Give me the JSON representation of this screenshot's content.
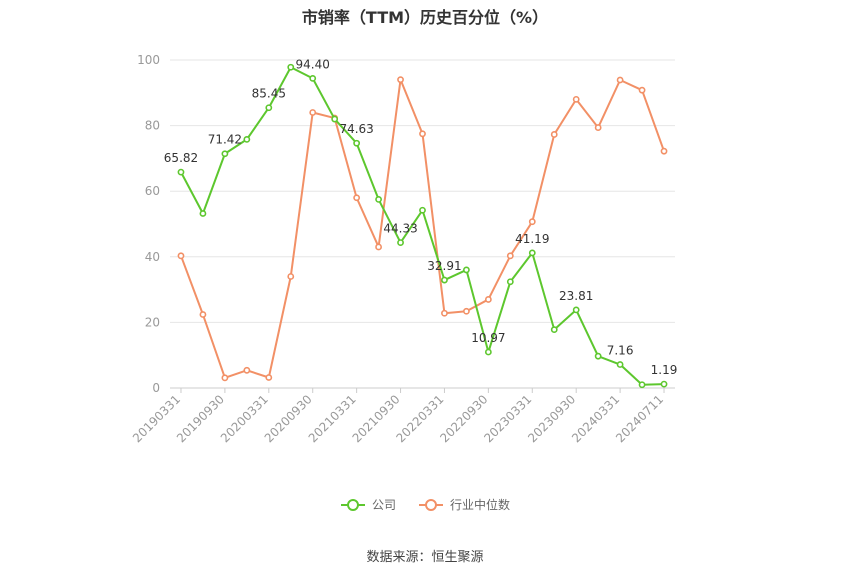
{
  "title": "市销率（TTM）历史百分位（%）",
  "source": "数据来源：恒生聚源",
  "colors": {
    "company": "#5dc72e",
    "industry": "#f29066",
    "grid": "#e6e6e6",
    "axis_text": "#999999"
  },
  "chart_data": {
    "type": "line",
    "title": "市销率（TTM）历史百分位（%）",
    "xlabel": "",
    "ylabel": "",
    "ylim": [
      0,
      100
    ],
    "yticks": [
      0,
      20,
      40,
      60,
      80,
      100
    ],
    "grid": true,
    "legend_position": "bottom",
    "x": [
      "20190331",
      "20190630",
      "20190930",
      "20191231",
      "20200331",
      "20200630",
      "20200930",
      "20201231",
      "20210331",
      "20210630",
      "20210930",
      "20211231",
      "20220331",
      "20220630",
      "20220930",
      "20221231",
      "20230331",
      "20230630",
      "20230930",
      "20231231",
      "20240331",
      "20240630",
      "20240711"
    ],
    "xtick_labels": [
      "20190331",
      "20190930",
      "20200331",
      "20200930",
      "20210331",
      "20210930",
      "20220331",
      "20220930",
      "20230331",
      "20230930",
      "20240331",
      "20240711"
    ],
    "series": [
      {
        "name": "公司",
        "color": "#5dc72e",
        "values": [
          65.82,
          53.2,
          71.42,
          75.8,
          85.45,
          97.8,
          94.4,
          82.0,
          74.63,
          57.5,
          44.33,
          54.2,
          32.91,
          36.0,
          10.97,
          32.4,
          41.19,
          17.8,
          23.81,
          9.7,
          7.16,
          1.0,
          1.19
        ],
        "labels": [
          "65.82",
          "",
          "71.42",
          "",
          "85.45",
          "",
          "94.40",
          "",
          "74.63",
          "",
          "44.33",
          "",
          "32.91",
          "",
          "10.97",
          "",
          "41.19",
          "",
          "23.81",
          "",
          "7.16",
          "",
          "1.19"
        ]
      },
      {
        "name": "行业中位数",
        "color": "#f29066",
        "values": [
          40.3,
          22.4,
          3.1,
          5.4,
          3.2,
          34.0,
          84.0,
          82.3,
          58.0,
          43.0,
          94.0,
          77.5,
          22.8,
          23.4,
          27.0,
          40.3,
          50.7,
          77.3,
          88.0,
          79.4,
          93.9,
          90.8,
          72.2
        ]
      }
    ]
  }
}
